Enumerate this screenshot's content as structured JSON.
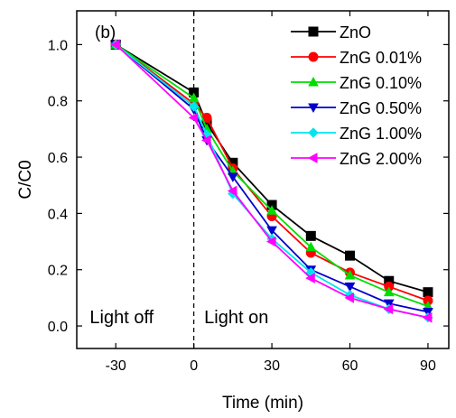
{
  "chart_data": {
    "type": "line",
    "panel_label": "(b)",
    "xlabel": "Time (min)",
    "ylabel": "C/C0",
    "xlim": [
      -45,
      98
    ],
    "ylim": [
      -0.08,
      1.12
    ],
    "xticks": [
      -30,
      0,
      30,
      60,
      90
    ],
    "xtick_labels": [
      "-30",
      "0",
      "30",
      "60",
      "90"
    ],
    "yticks": [
      0.0,
      0.2,
      0.4,
      0.6,
      0.8,
      1.0
    ],
    "ytick_labels": [
      "0.0",
      "0.2",
      "0.4",
      "0.6",
      "0.8",
      "1.0"
    ],
    "grid": false,
    "legend_position": "top-right",
    "divider_x": 0,
    "annotations": [
      {
        "text": "Light off",
        "x": -40,
        "y": 0.01
      },
      {
        "text": "Light on",
        "x": 4,
        "y": 0.01
      }
    ],
    "x": [
      -30,
      0,
      5,
      15,
      30,
      45,
      60,
      75,
      90
    ],
    "series": [
      {
        "name": "ZnO",
        "color": "#000000",
        "marker": "square",
        "values": [
          1.0,
          0.83,
          0.72,
          0.58,
          0.43,
          0.32,
          0.25,
          0.16,
          0.12
        ]
      },
      {
        "name": "ZnG 0.01%",
        "color": "#ff0000",
        "marker": "circle",
        "values": [
          1.0,
          0.79,
          0.74,
          0.56,
          0.39,
          0.26,
          0.19,
          0.14,
          0.09
        ]
      },
      {
        "name": "ZnG 0.10%",
        "color": "#00dd00",
        "marker": "triangle-up",
        "values": [
          1.0,
          0.81,
          0.7,
          0.55,
          0.41,
          0.28,
          0.18,
          0.12,
          0.07
        ]
      },
      {
        "name": "ZnG 0.50%",
        "color": "#0000cc",
        "marker": "triangle-down",
        "values": [
          1.0,
          0.77,
          0.66,
          0.53,
          0.34,
          0.2,
          0.14,
          0.08,
          0.05
        ]
      },
      {
        "name": "ZnG 1.00%",
        "color": "#00e5ee",
        "marker": "diamond",
        "values": [
          1.0,
          0.78,
          0.68,
          0.47,
          0.31,
          0.19,
          0.11,
          0.06,
          0.03
        ]
      },
      {
        "name": "ZnG 2.00%",
        "color": "#ff00ff",
        "marker": "triangle-left",
        "values": [
          1.0,
          0.74,
          0.66,
          0.48,
          0.3,
          0.17,
          0.1,
          0.06,
          0.03
        ]
      }
    ]
  }
}
